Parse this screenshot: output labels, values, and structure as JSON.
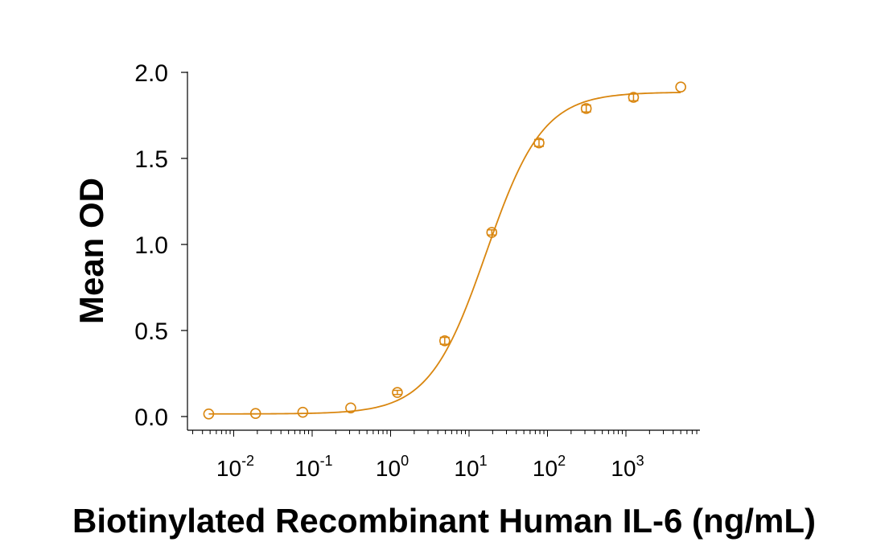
{
  "chart_data": {
    "type": "scatter",
    "x_scale": "log",
    "xlabel": "Biotinylated Recombinant Human IL-6 (ng/mL)",
    "ylabel": "Mean OD",
    "xlim": [
      0.003,
      8000
    ],
    "ylim": [
      0,
      2.0
    ],
    "y_ticks": [
      {
        "value": 0.0,
        "label": "0.0"
      },
      {
        "value": 0.5,
        "label": "0.5"
      },
      {
        "value": 1.0,
        "label": "1.0"
      },
      {
        "value": 1.5,
        "label": "1.5"
      },
      {
        "value": 2.0,
        "label": "2.0"
      }
    ],
    "x_ticks": [
      {
        "value": 0.01,
        "base": "10",
        "exp": "-2"
      },
      {
        "value": 0.1,
        "base": "10",
        "exp": "-1"
      },
      {
        "value": 1,
        "base": "10",
        "exp": "0"
      },
      {
        "value": 10,
        "base": "10",
        "exp": "1"
      },
      {
        "value": 100,
        "base": "10",
        "exp": "2"
      },
      {
        "value": 1000,
        "base": "10",
        "exp": "3"
      }
    ],
    "grid": false,
    "color": "#D9860F",
    "series": [
      {
        "points": [
          {
            "x": 0.0048,
            "y": 0.015,
            "err": 0.0
          },
          {
            "x": 0.019,
            "y": 0.018,
            "err": 0.0
          },
          {
            "x": 0.076,
            "y": 0.025,
            "err": 0.0
          },
          {
            "x": 0.31,
            "y": 0.05,
            "err": 0.0
          },
          {
            "x": 1.22,
            "y": 0.14,
            "err": 0.012
          },
          {
            "x": 4.9,
            "y": 0.44,
            "err": 0.02
          },
          {
            "x": 19.5,
            "y": 1.07,
            "err": 0.015
          },
          {
            "x": 78,
            "y": 1.59,
            "err": 0.02
          },
          {
            "x": 312,
            "y": 1.79,
            "err": 0.02
          },
          {
            "x": 1250,
            "y": 1.855,
            "err": 0.02
          },
          {
            "x": 5000,
            "y": 1.915,
            "err": 0.0
          }
        ],
        "fit": {
          "model": "4PL",
          "bottom": 0.015,
          "top": 1.885,
          "ec50": 16.5,
          "hill": 1.2
        }
      }
    ]
  }
}
